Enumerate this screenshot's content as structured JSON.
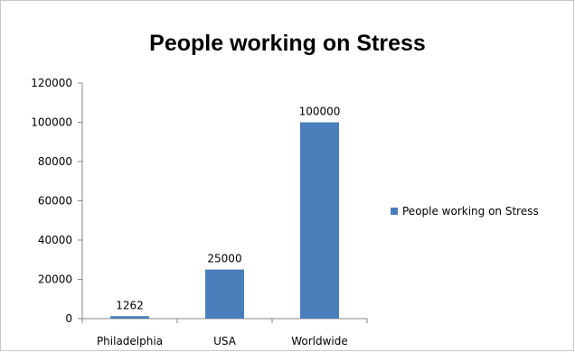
{
  "chart_data": {
    "type": "bar",
    "title": "People working on Stress",
    "categories": [
      "Philadelphia",
      "USA",
      "Worldwide"
    ],
    "series": [
      {
        "name": "People working on Stress",
        "values": [
          1262,
          25000,
          100000
        ],
        "color": "#4a7ebb"
      }
    ],
    "data_labels": [
      "1262",
      "25000",
      "100000"
    ],
    "ylim": [
      0,
      120000
    ],
    "y_ticks": [
      "0",
      "20000",
      "40000",
      "60000",
      "80000",
      "100000",
      "120000"
    ],
    "grid": false,
    "legend_position": "right"
  }
}
